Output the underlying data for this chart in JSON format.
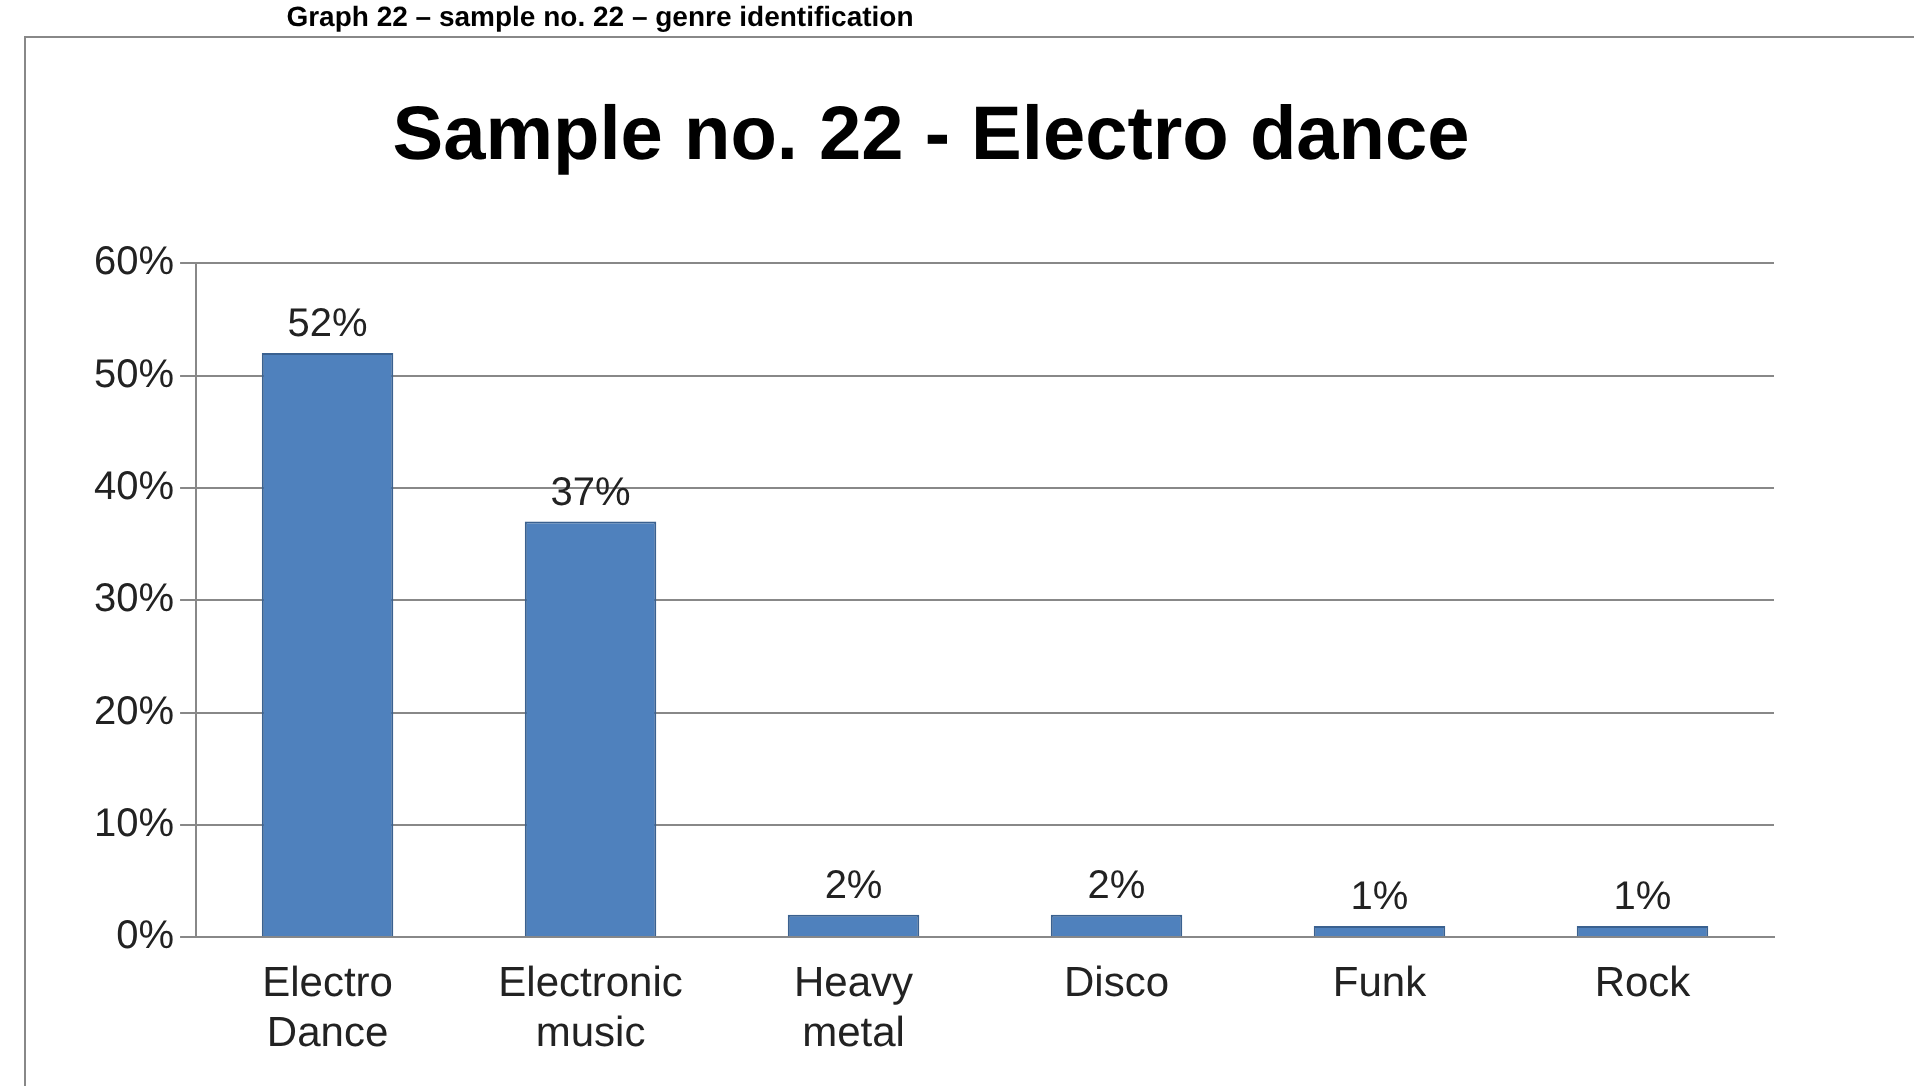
{
  "chart_data": {
    "type": "bar",
    "title": "Sample no. 22 - Electro dance",
    "annotations": [
      "Graph 22 – sample no. 22 – genre identification"
    ],
    "categories": [
      "Electro Dance",
      "Electronic music",
      "Heavy metal",
      "Disco",
      "Funk",
      "Rock"
    ],
    "values": [
      52,
      37,
      2,
      2,
      1,
      1
    ],
    "value_labels": [
      "52%",
      "37%",
      "2%",
      "2%",
      "1%",
      "1%"
    ],
    "color": "#4f81bd",
    "ylim": [
      0,
      60
    ],
    "yticks": [
      {
        "value": 0,
        "label": "0%"
      },
      {
        "value": 10,
        "label": "10%"
      },
      {
        "value": 20,
        "label": "20%"
      },
      {
        "value": 30,
        "label": "30%"
      },
      {
        "value": 40,
        "label": "40%"
      },
      {
        "value": 50,
        "label": "50%"
      },
      {
        "value": 60,
        "label": "60%"
      }
    ],
    "grid": "y",
    "legend": false
  }
}
